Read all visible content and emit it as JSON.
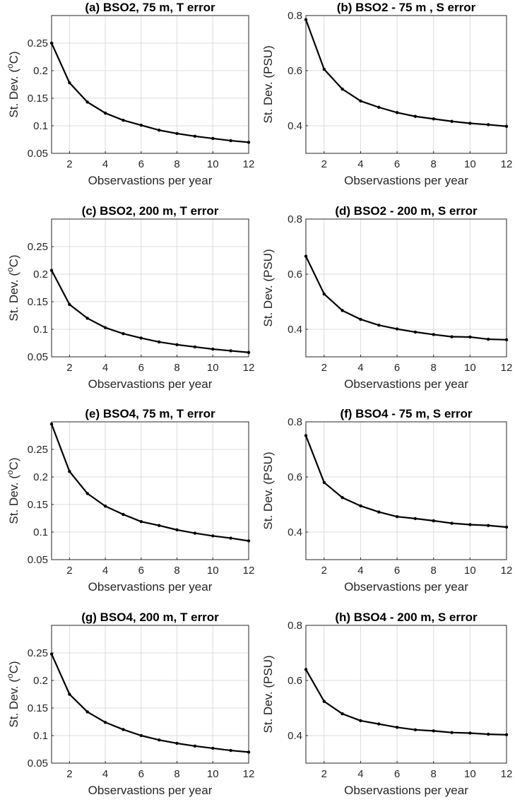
{
  "chart_data": [
    {
      "type": "line",
      "title": "(a) BSO2, 75 m, T error",
      "xlabel": "Observastions per year",
      "ylabel": {
        "prefix": "St. Dev. (",
        "sup": "o",
        "suffix": "C)"
      },
      "xlim": [
        1,
        12
      ],
      "ylim": [
        0.05,
        0.3
      ],
      "xticks": [
        2,
        4,
        6,
        8,
        10,
        12
      ],
      "yticks": [
        0.05,
        0.1,
        0.15,
        0.2,
        0.25
      ],
      "ytick_labels": [
        "0.05",
        "0.1",
        "0.15",
        "0.2",
        "0.25"
      ],
      "grid": true,
      "x": [
        1,
        2,
        3,
        4,
        5,
        6,
        7,
        8,
        9,
        10,
        11,
        12
      ],
      "y": [
        0.25,
        0.178,
        0.143,
        0.123,
        0.11,
        0.101,
        0.092,
        0.086,
        0.081,
        0.077,
        0.073,
        0.07
      ]
    },
    {
      "type": "line",
      "title": "(b) BSO2 - 75 m , S error",
      "xlabel": "Observastions per year",
      "ylabel": {
        "prefix": "St. Dev. (PSU)",
        "sup": "",
        "suffix": ""
      },
      "xlim": [
        1,
        12
      ],
      "ylim": [
        0.3,
        0.8
      ],
      "xticks": [
        2,
        4,
        6,
        8,
        10,
        12
      ],
      "yticks": [
        0.4,
        0.6,
        0.8
      ],
      "ytick_labels": [
        "0.4",
        "0.6",
        "0.8"
      ],
      "grid": true,
      "x": [
        1,
        2,
        3,
        4,
        5,
        6,
        7,
        8,
        9,
        10,
        11,
        12
      ],
      "y": [
        0.785,
        0.605,
        0.533,
        0.49,
        0.467,
        0.448,
        0.434,
        0.425,
        0.416,
        0.409,
        0.404,
        0.398
      ]
    },
    {
      "type": "line",
      "title": "(c) BSO2, 200 m, T error",
      "xlabel": "Observastions per year",
      "ylabel": {
        "prefix": "St. Dev. (",
        "sup": "o",
        "suffix": "C)"
      },
      "xlim": [
        1,
        12
      ],
      "ylim": [
        0.05,
        0.3
      ],
      "xticks": [
        2,
        4,
        6,
        8,
        10,
        12
      ],
      "yticks": [
        0.05,
        0.1,
        0.15,
        0.2,
        0.25
      ],
      "ytick_labels": [
        "0.05",
        "0.1",
        "0.15",
        "0.2",
        "0.25"
      ],
      "grid": true,
      "x": [
        1,
        2,
        3,
        4,
        5,
        6,
        7,
        8,
        9,
        10,
        11,
        12
      ],
      "y": [
        0.207,
        0.145,
        0.12,
        0.103,
        0.092,
        0.084,
        0.077,
        0.072,
        0.068,
        0.064,
        0.061,
        0.058
      ]
    },
    {
      "type": "line",
      "title": "(d) BSO2 - 200 m, S error",
      "xlabel": "Observastions per year",
      "ylabel": {
        "prefix": "St. Dev. (PSU)",
        "sup": "",
        "suffix": ""
      },
      "xlim": [
        1,
        12
      ],
      "ylim": [
        0.3,
        0.8
      ],
      "xticks": [
        2,
        4,
        6,
        8,
        10,
        12
      ],
      "yticks": [
        0.4,
        0.6,
        0.8
      ],
      "ytick_labels": [
        "0.4",
        "0.6",
        "0.8"
      ],
      "grid": true,
      "x": [
        1,
        2,
        3,
        4,
        5,
        6,
        7,
        8,
        9,
        10,
        11,
        12
      ],
      "y": [
        0.665,
        0.528,
        0.468,
        0.436,
        0.415,
        0.401,
        0.39,
        0.381,
        0.373,
        0.372,
        0.364,
        0.362
      ]
    },
    {
      "type": "line",
      "title": "(e) BSO4, 75 m, T error",
      "xlabel": "Observastions per year",
      "ylabel": {
        "prefix": "St. Dev. (",
        "sup": "o",
        "suffix": "C)"
      },
      "xlim": [
        1,
        12
      ],
      "ylim": [
        0.05,
        0.3
      ],
      "xticks": [
        2,
        4,
        6,
        8,
        10,
        12
      ],
      "yticks": [
        0.05,
        0.1,
        0.15,
        0.2,
        0.25
      ],
      "ytick_labels": [
        "0.05",
        "0.1",
        "0.15",
        "0.2",
        "0.25"
      ],
      "grid": true,
      "x": [
        1,
        2,
        3,
        4,
        5,
        6,
        7,
        8,
        9,
        10,
        11,
        12
      ],
      "y": [
        0.296,
        0.21,
        0.17,
        0.147,
        0.132,
        0.119,
        0.112,
        0.104,
        0.098,
        0.093,
        0.089,
        0.084
      ]
    },
    {
      "type": "line",
      "title": "(f) BSO4 - 75 m, S error",
      "xlabel": "Observastions per year",
      "ylabel": {
        "prefix": "St. Dev. (PSU)",
        "sup": "",
        "suffix": ""
      },
      "xlim": [
        1,
        12
      ],
      "ylim": [
        0.3,
        0.8
      ],
      "xticks": [
        2,
        4,
        6,
        8,
        10,
        12
      ],
      "yticks": [
        0.4,
        0.6,
        0.8
      ],
      "ytick_labels": [
        "0.4",
        "0.6",
        "0.8"
      ],
      "grid": true,
      "x": [
        1,
        2,
        3,
        4,
        5,
        6,
        7,
        8,
        9,
        10,
        11,
        12
      ],
      "y": [
        0.75,
        0.58,
        0.525,
        0.495,
        0.473,
        0.456,
        0.449,
        0.441,
        0.432,
        0.427,
        0.424,
        0.418
      ]
    },
    {
      "type": "line",
      "title": "(g) BSO4, 200 m, T error",
      "xlabel": "Observastions per year",
      "ylabel": {
        "prefix": "St. Dev. (",
        "sup": "o",
        "suffix": "C)"
      },
      "xlim": [
        1,
        12
      ],
      "ylim": [
        0.05,
        0.3
      ],
      "xticks": [
        2,
        4,
        6,
        8,
        10,
        12
      ],
      "yticks": [
        0.05,
        0.1,
        0.15,
        0.2,
        0.25
      ],
      "ytick_labels": [
        "0.05",
        "0.1",
        "0.15",
        "0.2",
        "0.25"
      ],
      "grid": true,
      "x": [
        1,
        2,
        3,
        4,
        5,
        6,
        7,
        8,
        9,
        10,
        11,
        12
      ],
      "y": [
        0.248,
        0.175,
        0.143,
        0.124,
        0.111,
        0.1,
        0.092,
        0.086,
        0.081,
        0.077,
        0.073,
        0.07
      ]
    },
    {
      "type": "line",
      "title": "(h) BSO4 - 200 m, S error",
      "xlabel": "Observastions per year",
      "ylabel": {
        "prefix": "St. Dev. (PSU)",
        "sup": "",
        "suffix": ""
      },
      "xlim": [
        1,
        12
      ],
      "ylim": [
        0.3,
        0.8
      ],
      "xticks": [
        2,
        4,
        6,
        8,
        10,
        12
      ],
      "yticks": [
        0.4,
        0.6,
        0.8
      ],
      "ytick_labels": [
        "0.4",
        "0.6",
        "0.8"
      ],
      "grid": true,
      "x": [
        1,
        2,
        3,
        4,
        5,
        6,
        7,
        8,
        9,
        10,
        11,
        12
      ],
      "y": [
        0.64,
        0.524,
        0.479,
        0.454,
        0.442,
        0.43,
        0.421,
        0.417,
        0.411,
        0.409,
        0.405,
        0.403
      ]
    }
  ],
  "colors": {
    "line": "#000000",
    "grid": "#dcdcdc",
    "axis": "#262626"
  }
}
